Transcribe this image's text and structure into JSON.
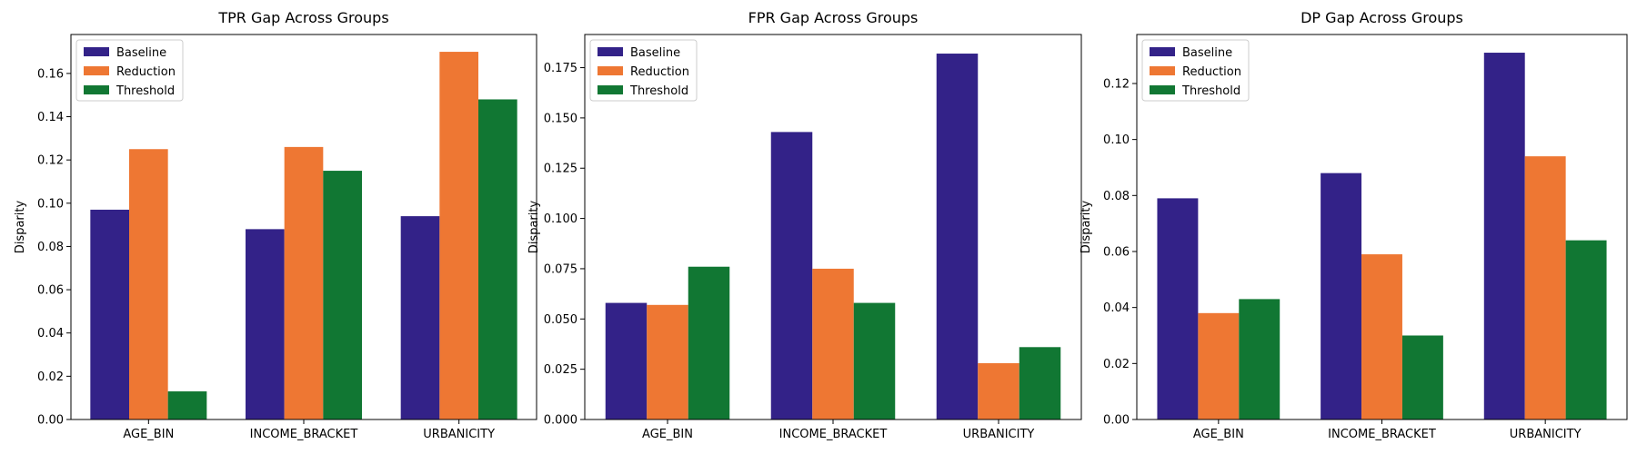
{
  "chart_data": [
    {
      "type": "bar",
      "title": "TPR Gap Across Groups",
      "xlabel": "",
      "ylabel": "Disparity",
      "categories": [
        "AGE_BIN",
        "INCOME_BRACKET",
        "URBANICITY"
      ],
      "ylim": [
        0,
        0.178
      ],
      "yticks": [
        0.0,
        0.02,
        0.04,
        0.06,
        0.08,
        0.1,
        0.12,
        0.14,
        0.16
      ],
      "ytick_labels": [
        "0.00",
        "0.02",
        "0.04",
        "0.06",
        "0.08",
        "0.10",
        "0.12",
        "0.14",
        "0.16"
      ],
      "legend_position": "top-left",
      "grid": false,
      "series": [
        {
          "name": "Baseline",
          "color": "#332288",
          "values": [
            0.097,
            0.088,
            0.094
          ]
        },
        {
          "name": "Reduction",
          "color": "#EE7733",
          "values": [
            0.125,
            0.126,
            0.17
          ]
        },
        {
          "name": "Threshold",
          "color": "#117733",
          "values": [
            0.013,
            0.115,
            0.148
          ]
        }
      ]
    },
    {
      "type": "bar",
      "title": "FPR Gap Across Groups",
      "xlabel": "",
      "ylabel": "Disparity",
      "categories": [
        "AGE_BIN",
        "INCOME_BRACKET",
        "URBANICITY"
      ],
      "ylim": [
        0,
        0.1915
      ],
      "yticks": [
        0.0,
        0.025,
        0.05,
        0.075,
        0.1,
        0.125,
        0.15,
        0.175
      ],
      "ytick_labels": [
        "0.000",
        "0.025",
        "0.050",
        "0.075",
        "0.100",
        "0.125",
        "0.150",
        "0.175"
      ],
      "legend_position": "top-left",
      "grid": false,
      "series": [
        {
          "name": "Baseline",
          "color": "#332288",
          "values": [
            0.058,
            0.143,
            0.182
          ]
        },
        {
          "name": "Reduction",
          "color": "#EE7733",
          "values": [
            0.057,
            0.075,
            0.028
          ]
        },
        {
          "name": "Threshold",
          "color": "#117733",
          "values": [
            0.076,
            0.058,
            0.036
          ]
        }
      ]
    },
    {
      "type": "bar",
      "title": "DP Gap Across Groups",
      "xlabel": "",
      "ylabel": "Disparity",
      "categories": [
        "AGE_BIN",
        "INCOME_BRACKET",
        "URBANICITY"
      ],
      "ylim": [
        0,
        0.1375
      ],
      "yticks": [
        0.0,
        0.02,
        0.04,
        0.06,
        0.08,
        0.1,
        0.12
      ],
      "ytick_labels": [
        "0.00",
        "0.02",
        "0.04",
        "0.06",
        "0.08",
        "0.10",
        "0.12"
      ],
      "legend_position": "top-left",
      "grid": false,
      "series": [
        {
          "name": "Baseline",
          "color": "#332288",
          "values": [
            0.079,
            0.088,
            0.131
          ]
        },
        {
          "name": "Reduction",
          "color": "#EE7733",
          "values": [
            0.038,
            0.059,
            0.094
          ]
        },
        {
          "name": "Threshold",
          "color": "#117733",
          "values": [
            0.043,
            0.03,
            0.064
          ]
        }
      ]
    }
  ]
}
